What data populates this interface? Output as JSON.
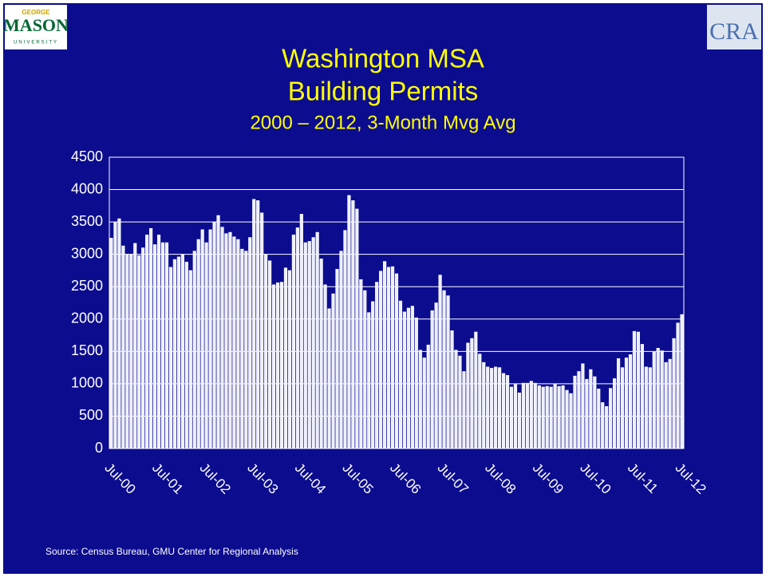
{
  "logos": {
    "left": [
      "GEORGE",
      "MASON",
      "UNIVERSITY"
    ],
    "right": "CRA"
  },
  "chart_data": {
    "type": "bar",
    "title": [
      "Washington MSA",
      "Building Permits"
    ],
    "subtitle": "2000 – 2012, 3-Month Mvg Avg",
    "source": "Source: Census Bureau, GMU Center for Regional Analysis",
    "categories": [
      "Jul-00",
      null,
      null,
      null,
      null,
      null,
      null,
      null,
      null,
      null,
      null,
      null,
      "Jul-01",
      null,
      null,
      null,
      null,
      null,
      null,
      null,
      null,
      null,
      null,
      null,
      "Jul-02",
      null,
      null,
      null,
      null,
      null,
      null,
      null,
      null,
      null,
      null,
      null,
      "Jul-03",
      null,
      null,
      null,
      null,
      null,
      null,
      null,
      null,
      null,
      null,
      null,
      "Jul-04",
      null,
      null,
      null,
      null,
      null,
      null,
      null,
      null,
      null,
      null,
      null,
      "Jul-05",
      null,
      null,
      null,
      null,
      null,
      null,
      null,
      null,
      null,
      null,
      null,
      "Jul-06",
      null,
      null,
      null,
      null,
      null,
      null,
      null,
      null,
      null,
      null,
      null,
      "Jul-07",
      null,
      null,
      null,
      null,
      null,
      null,
      null,
      null,
      null,
      null,
      null,
      "Jul-08",
      null,
      null,
      null,
      null,
      null,
      null,
      null,
      null,
      null,
      null,
      null,
      "Jul-09",
      null,
      null,
      null,
      null,
      null,
      null,
      null,
      null,
      null,
      null,
      null,
      "Jul-10",
      null,
      null,
      null,
      null,
      null,
      null,
      null,
      null,
      null,
      null,
      null,
      "Jul-11",
      null,
      null,
      null,
      null,
      null,
      null,
      null,
      null,
      null,
      null,
      null,
      "Jul-12"
    ],
    "values": [
      3250,
      3500,
      3550,
      3130,
      3000,
      3000,
      3170,
      2980,
      3100,
      3300,
      3400,
      3150,
      3300,
      3180,
      3180,
      2800,
      2920,
      2960,
      3000,
      2880,
      2750,
      3050,
      3230,
      3380,
      3180,
      3380,
      3500,
      3600,
      3420,
      3320,
      3340,
      3270,
      3230,
      3080,
      3050,
      3260,
      3850,
      3830,
      3640,
      3000,
      2900,
      2530,
      2560,
      2570,
      2790,
      2750,
      3300,
      3410,
      3620,
      3180,
      3200,
      3260,
      3340,
      2930,
      2530,
      2160,
      2390,
      2770,
      3050,
      3370,
      3910,
      3830,
      3700,
      2610,
      2440,
      2100,
      2270,
      2570,
      2740,
      2890,
      2800,
      2810,
      2700,
      2280,
      2110,
      2170,
      2200,
      2020,
      1520,
      1400,
      1600,
      2130,
      2250,
      2680,
      2440,
      2360,
      1820,
      1520,
      1430,
      1190,
      1630,
      1700,
      1800,
      1460,
      1330,
      1260,
      1240,
      1260,
      1250,
      1160,
      1130,
      950,
      990,
      860,
      1010,
      1010,
      1040,
      1010,
      970,
      950,
      960,
      950,
      1000,
      960,
      970,
      900,
      850,
      1120,
      1190,
      1310,
      1070,
      1220,
      1110,
      920,
      710,
      650,
      930,
      1080,
      1390,
      1250,
      1400,
      1450,
      1810,
      1800,
      1610,
      1260,
      1250,
      1490,
      1550,
      1510,
      1330,
      1380,
      1700,
      1940,
      2070
    ],
    "color": "#eef0ff",
    "ylim": [
      0,
      4500
    ],
    "yticks": [
      0,
      500,
      1000,
      1500,
      2000,
      2500,
      3000,
      3500,
      4000,
      4500
    ],
    "grid": true
  }
}
